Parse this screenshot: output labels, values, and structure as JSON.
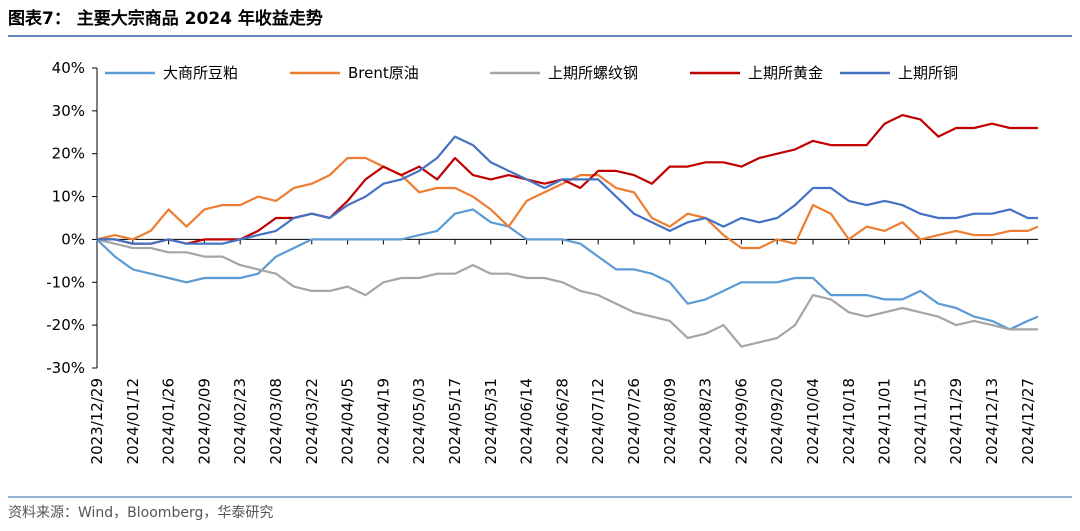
{
  "title": "图表7： 主要大宗商品 2024 年收益走势",
  "source": "资料来源：Wind，Bloomberg，华泰研究",
  "chart_data": {
    "type": "line",
    "x": [
      "2023/12/29",
      "2024/01/05",
      "2024/01/12",
      "2024/01/19",
      "2024/01/26",
      "2024/02/02",
      "2024/02/09",
      "2024/02/16",
      "2024/02/23",
      "2024/03/01",
      "2024/03/08",
      "2024/03/15",
      "2024/03/22",
      "2024/03/29",
      "2024/04/05",
      "2024/04/12",
      "2024/04/19",
      "2024/04/26",
      "2024/05/03",
      "2024/05/10",
      "2024/05/17",
      "2024/05/24",
      "2024/05/31",
      "2024/06/07",
      "2024/06/14",
      "2024/06/21",
      "2024/06/28",
      "2024/07/05",
      "2024/07/12",
      "2024/07/19",
      "2024/07/26",
      "2024/08/02",
      "2024/08/09",
      "2024/08/16",
      "2024/08/23",
      "2024/08/30",
      "2024/09/06",
      "2024/09/13",
      "2024/09/20",
      "2024/09/27",
      "2024/10/04",
      "2024/10/11",
      "2024/10/18",
      "2024/10/25",
      "2024/11/01",
      "2024/11/08",
      "2024/11/15",
      "2024/11/22",
      "2024/11/29",
      "2024/12/06",
      "2024/12/13",
      "2024/12/20",
      "2024/12/27",
      "2024/12/31"
    ],
    "xlim": [
      "2023/12/29",
      "2024/12/31"
    ],
    "xticks": [
      "2023/12/29",
      "2024/01/12",
      "2024/01/26",
      "2024/02/09",
      "2024/02/23",
      "2024/03/08",
      "2024/03/22",
      "2024/04/05",
      "2024/04/19",
      "2024/05/03",
      "2024/05/17",
      "2024/05/31",
      "2024/06/14",
      "2024/06/28",
      "2024/07/12",
      "2024/07/26",
      "2024/08/09",
      "2024/08/23",
      "2024/09/06",
      "2024/09/20",
      "2024/10/04",
      "2024/10/18",
      "2024/11/01",
      "2024/11/15",
      "2024/11/29",
      "2024/12/13",
      "2024/12/27"
    ],
    "ylim": [
      -30,
      40
    ],
    "yticks": [
      {
        "value": -30,
        "label": "-30%"
      },
      {
        "value": -20,
        "label": "-20%"
      },
      {
        "value": -10,
        "label": "-10%"
      },
      {
        "value": 0,
        "label": "0%"
      },
      {
        "value": 10,
        "label": "10%"
      },
      {
        "value": 20,
        "label": "20%"
      },
      {
        "value": 30,
        "label": "30%"
      },
      {
        "value": 40,
        "label": "40%"
      }
    ],
    "legend": "top",
    "series": [
      {
        "name": "大商所豆粕",
        "color": "#5b9bd5",
        "values": [
          0,
          -4,
          -7,
          -8,
          -9,
          -10,
          -9,
          -9,
          -9,
          -8,
          -4,
          -2,
          0,
          0,
          0,
          0,
          0,
          0,
          1,
          2,
          6,
          7,
          4,
          3,
          0,
          0,
          0,
          -1,
          -4,
          -7,
          -7,
          -8,
          -10,
          -15,
          -14,
          -12,
          -10,
          -10,
          -10,
          -9,
          -9,
          -13,
          -13,
          -13,
          -14,
          -14,
          -12,
          -15,
          -16,
          -18,
          -19,
          -21,
          -19,
          -18
        ]
      },
      {
        "name": "Brent原油",
        "color": "#ed7d31",
        "values": [
          0,
          1,
          0,
          2,
          7,
          3,
          7,
          8,
          8,
          10,
          9,
          12,
          13,
          15,
          19,
          19,
          17,
          15,
          11,
          12,
          12,
          10,
          7,
          3,
          9,
          11,
          13,
          15,
          15,
          12,
          11,
          5,
          3,
          6,
          5,
          1,
          -2,
          -2,
          0,
          -1,
          8,
          6,
          0,
          3,
          2,
          4,
          0,
          1,
          2,
          1,
          1,
          2,
          2,
          3
        ]
      },
      {
        "name": "上期所螺纹钢",
        "color": "#a5a5a5",
        "values": [
          0,
          -1,
          -2,
          -2,
          -3,
          -3,
          -4,
          -4,
          -6,
          -7,
          -8,
          -11,
          -12,
          -12,
          -11,
          -13,
          -10,
          -9,
          -9,
          -8,
          -8,
          -6,
          -8,
          -8,
          -9,
          -9,
          -10,
          -12,
          -13,
          -15,
          -17,
          -18,
          -19,
          -23,
          -22,
          -20,
          -25,
          -24,
          -23,
          -20,
          -13,
          -14,
          -17,
          -18,
          -17,
          -16,
          -17,
          -18,
          -20,
          -19,
          -20,
          -21,
          -21,
          -21
        ]
      },
      {
        "name": "上期所黄金",
        "color": "#c00000",
        "values": [
          0,
          0,
          -1,
          -1,
          0,
          -1,
          0,
          0,
          0,
          2,
          5,
          5,
          6,
          5,
          9,
          14,
          17,
          15,
          17,
          14,
          19,
          15,
          14,
          15,
          14,
          13,
          14,
          12,
          16,
          16,
          15,
          13,
          17,
          17,
          18,
          18,
          17,
          19,
          20,
          21,
          23,
          22,
          22,
          22,
          27,
          29,
          28,
          24,
          26,
          26,
          27,
          26,
          26,
          26
        ]
      },
      {
        "name": "上期所铜",
        "color": "#4472c4",
        "values": [
          0,
          0,
          -1,
          -1,
          0,
          -1,
          -1,
          -1,
          0,
          1,
          2,
          5,
          6,
          5,
          8,
          10,
          13,
          14,
          16,
          19,
          24,
          22,
          18,
          16,
          14,
          12,
          14,
          14,
          14,
          10,
          6,
          4,
          2,
          4,
          5,
          3,
          5,
          4,
          5,
          8,
          12,
          12,
          9,
          8,
          9,
          8,
          6,
          5,
          5,
          6,
          6,
          7,
          5,
          5
        ]
      }
    ]
  }
}
